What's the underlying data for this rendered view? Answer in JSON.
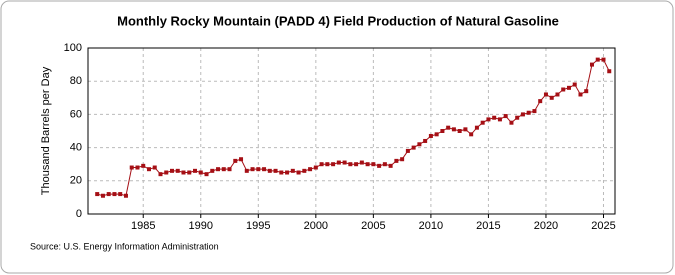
{
  "chart_data": {
    "type": "line",
    "title": "Monthly Rocky Mountain (PADD 4) Field Production of Natural Gasoline",
    "y_label": "Thousand Barrels per Day",
    "source": "Source: U.S. Energy Information Administration",
    "color": "#a50f15",
    "grid": true,
    "x": [
      1981,
      1981.5,
      1982,
      1982.5,
      1983,
      1983.5,
      1984,
      1984.5,
      1985,
      1985.5,
      1986,
      1986.5,
      1987,
      1987.5,
      1988,
      1988.5,
      1989,
      1989.5,
      1990,
      1990.5,
      1991,
      1991.5,
      1992,
      1992.5,
      1993,
      1993.5,
      1994,
      1994.5,
      1995,
      1995.5,
      1996,
      1996.5,
      1997,
      1997.5,
      1998,
      1998.5,
      1999,
      1999.5,
      2000,
      2000.5,
      2001,
      2001.5,
      2002,
      2002.5,
      2003,
      2003.5,
      2004,
      2004.5,
      2005,
      2005.5,
      2006,
      2006.5,
      2007,
      2007.5,
      2008,
      2008.5,
      2009,
      2009.5,
      2010,
      2010.5,
      2011,
      2011.5,
      2012,
      2012.5,
      2013,
      2013.5,
      2014,
      2014.5,
      2015,
      2015.5,
      2016,
      2016.5,
      2017,
      2017.5,
      2018,
      2018.5,
      2019,
      2019.5,
      2020,
      2020.5,
      2021,
      2021.5,
      2022,
      2022.5,
      2023,
      2023.5,
      2024,
      2024.5,
      2025,
      2025.5
    ],
    "values": [
      12,
      11,
      12,
      12,
      12,
      11,
      28,
      28,
      29,
      27,
      28,
      24,
      25,
      26,
      26,
      25,
      25,
      26,
      25,
      24,
      26,
      27,
      27,
      27,
      32,
      33,
      26,
      27,
      27,
      27,
      26,
      26,
      25,
      25,
      26,
      25,
      26,
      27,
      28,
      30,
      30,
      30,
      31,
      31,
      30,
      30,
      31,
      30,
      30,
      29,
      30,
      29,
      32,
      33,
      38,
      40,
      42,
      44,
      47,
      48,
      50,
      52,
      51,
      50,
      51,
      48,
      52,
      55,
      57,
      58,
      57,
      59,
      55,
      58,
      60,
      61,
      62,
      68,
      72,
      70,
      72,
      75,
      76,
      78,
      72,
      74,
      90,
      93,
      93,
      86
    ],
    "xlim": [
      1980.2,
      2026
    ],
    "xticks": [
      1985,
      1990,
      1995,
      2000,
      2005,
      2010,
      2015,
      2020,
      2025
    ],
    "ylim": [
      0,
      100
    ],
    "yticks": [
      0,
      20,
      40,
      60,
      80,
      100
    ]
  }
}
